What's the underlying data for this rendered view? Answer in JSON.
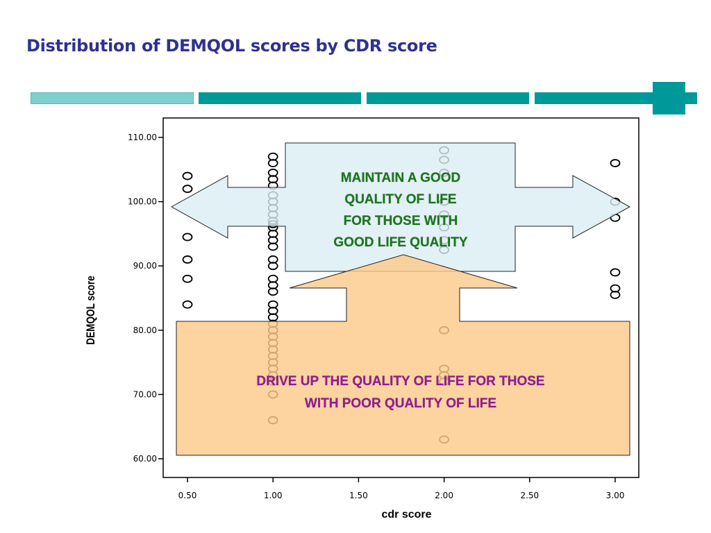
{
  "slide": {
    "title": "Distribution of DEMQOL scores by CDR score"
  },
  "colors": {
    "title": "#2e3192",
    "accent_teal": "#009999",
    "accent_light": "#7ecfce",
    "upper_callout_fill": "#dbeef3",
    "lower_callout_fill": "#fcc98a",
    "upper_text": "#1a7a1a",
    "lower_text": "#99199e"
  },
  "chart_data": {
    "type": "scatter",
    "xlabel": "cdr score",
    "ylabel": "DEMQOL score",
    "xlim": [
      0.45,
      3.1
    ],
    "ylim": [
      58,
      115
    ],
    "x_ticks": [
      "0.50",
      "1.00",
      "1.50",
      "2.00",
      "2.50",
      "3.00"
    ],
    "y_ticks": [
      "60.00",
      "70.00",
      "80.00",
      "90.00",
      "100.00",
      "110.00"
    ],
    "grid": false,
    "legend": "none",
    "points": [
      {
        "x": 0.5,
        "y": 104
      },
      {
        "x": 0.5,
        "y": 102
      },
      {
        "x": 0.5,
        "y": 94.5
      },
      {
        "x": 0.5,
        "y": 91
      },
      {
        "x": 0.5,
        "y": 88
      },
      {
        "x": 0.5,
        "y": 84
      },
      {
        "x": 1.0,
        "y": 107
      },
      {
        "x": 1.0,
        "y": 106
      },
      {
        "x": 1.0,
        "y": 104.5
      },
      {
        "x": 1.0,
        "y": 103.5
      },
      {
        "x": 1.0,
        "y": 102.5
      },
      {
        "x": 1.0,
        "y": 101
      },
      {
        "x": 1.0,
        "y": 100
      },
      {
        "x": 1.0,
        "y": 99
      },
      {
        "x": 1.0,
        "y": 98
      },
      {
        "x": 1.0,
        "y": 97
      },
      {
        "x": 1.0,
        "y": 96.5
      },
      {
        "x": 1.0,
        "y": 96
      },
      {
        "x": 1.0,
        "y": 95
      },
      {
        "x": 1.0,
        "y": 94
      },
      {
        "x": 1.0,
        "y": 93
      },
      {
        "x": 1.0,
        "y": 91
      },
      {
        "x": 1.0,
        "y": 90
      },
      {
        "x": 1.0,
        "y": 88
      },
      {
        "x": 1.0,
        "y": 87
      },
      {
        "x": 1.0,
        "y": 86
      },
      {
        "x": 1.0,
        "y": 84
      },
      {
        "x": 1.0,
        "y": 83
      },
      {
        "x": 1.0,
        "y": 82
      },
      {
        "x": 1.0,
        "y": 81
      },
      {
        "x": 1.0,
        "y": 80
      },
      {
        "x": 1.0,
        "y": 79
      },
      {
        "x": 1.0,
        "y": 78
      },
      {
        "x": 1.0,
        "y": 77
      },
      {
        "x": 1.0,
        "y": 76
      },
      {
        "x": 1.0,
        "y": 75
      },
      {
        "x": 1.0,
        "y": 74
      },
      {
        "x": 1.0,
        "y": 73
      },
      {
        "x": 1.0,
        "y": 72
      },
      {
        "x": 1.0,
        "y": 70
      },
      {
        "x": 1.0,
        "y": 66
      },
      {
        "x": 2.0,
        "y": 108
      },
      {
        "x": 2.0,
        "y": 106.5
      },
      {
        "x": 2.0,
        "y": 104.5
      },
      {
        "x": 2.0,
        "y": 100
      },
      {
        "x": 2.0,
        "y": 98
      },
      {
        "x": 2.0,
        "y": 96
      },
      {
        "x": 2.0,
        "y": 94
      },
      {
        "x": 2.0,
        "y": 92.5
      },
      {
        "x": 2.0,
        "y": 80
      },
      {
        "x": 2.0,
        "y": 74
      },
      {
        "x": 2.0,
        "y": 73
      },
      {
        "x": 2.0,
        "y": 72
      },
      {
        "x": 2.0,
        "y": 63
      },
      {
        "x": 3.0,
        "y": 106
      },
      {
        "x": 3.0,
        "y": 100
      },
      {
        "x": 3.0,
        "y": 97.5
      },
      {
        "x": 3.0,
        "y": 89
      },
      {
        "x": 3.0,
        "y": 86.5
      },
      {
        "x": 3.0,
        "y": 85.5
      }
    ]
  },
  "callouts": {
    "upper": {
      "lines": [
        "MAINTAIN A GOOD",
        "QUALITY OF LIFE",
        "FOR THOSE WITH",
        "GOOD LIFE QUALITY"
      ]
    },
    "lower": {
      "lines": [
        "DRIVE UP THE QUALITY OF LIFE FOR THOSE",
        "WITH POOR QUALITY OF LIFE"
      ]
    }
  }
}
